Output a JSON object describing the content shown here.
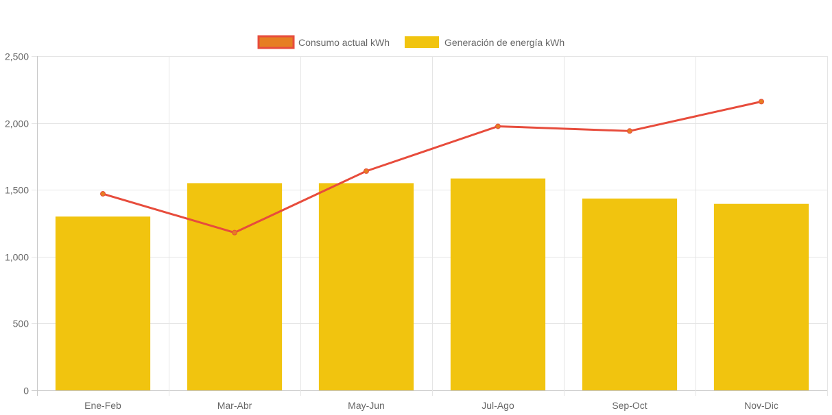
{
  "chart_data": {
    "type": "bar",
    "title": "",
    "xlabel": "",
    "ylabel": "",
    "categories": [
      "Ene-Feb",
      "Mar-Abr",
      "May-Jun",
      "Jul-Ago",
      "Sep-Oct",
      "Nov-Dic"
    ],
    "ylim": [
      0,
      2500
    ],
    "yticks": [
      0,
      500,
      1000,
      1500,
      2000,
      2500
    ],
    "ytick_labels": [
      "0",
      "500",
      "1,000",
      "1,500",
      "2,000",
      "2,500"
    ],
    "grid": true,
    "legend_position": "top",
    "series": [
      {
        "name": "Consumo actual kWh",
        "type": "line",
        "color": "#e74c3c",
        "marker_color": "#e67e22",
        "values": [
          1470,
          1180,
          1640,
          1975,
          1940,
          2160
        ]
      },
      {
        "name": "Generación de energía kWh",
        "type": "bar",
        "color": "#f1c40f",
        "values": [
          1300,
          1550,
          1550,
          1585,
          1435,
          1395
        ]
      }
    ]
  }
}
